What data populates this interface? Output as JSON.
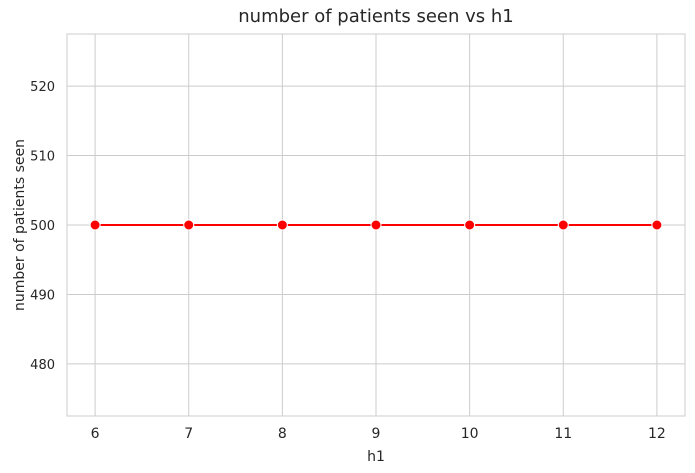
{
  "chart_data": {
    "type": "line",
    "title": "number of patients seen vs h1",
    "xlabel": "h1",
    "ylabel": "number of patients seen",
    "x": [
      6,
      7,
      8,
      9,
      10,
      11,
      12
    ],
    "series": [
      {
        "values": [
          500,
          500,
          500,
          500,
          500,
          500,
          500
        ],
        "color": "#ff0000",
        "marker": "circle"
      }
    ],
    "xticks": [
      6,
      7,
      8,
      9,
      10,
      11,
      12
    ],
    "yticks": [
      480,
      490,
      500,
      510,
      520
    ],
    "xlim": [
      5.7,
      12.3
    ],
    "ylim": [
      472.5,
      527.5
    ],
    "grid": true,
    "legend": "none"
  }
}
